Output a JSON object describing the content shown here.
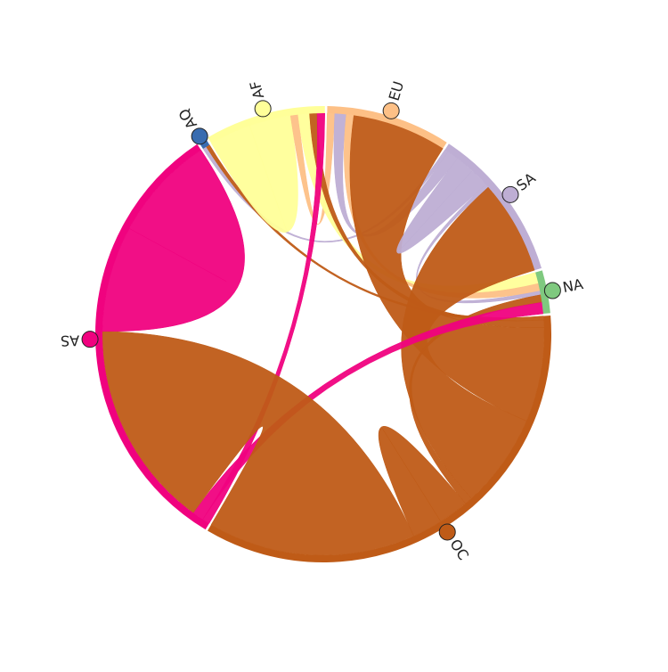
{
  "chart_data": {
    "type": "chord",
    "nodes": [
      {
        "name": "AQ",
        "color": "#386cb0"
      },
      {
        "name": "AF",
        "color": "#ffff99"
      },
      {
        "name": "EU",
        "color": "#fdc086"
      },
      {
        "name": "SA",
        "color": "#beaed4"
      },
      {
        "name": "NA",
        "color": "#7fc97f"
      },
      {
        "name": "OC",
        "color": "#bf5b17"
      },
      {
        "name": "AS",
        "color": "#f0027f"
      }
    ],
    "matrix": [
      [
        0,
        0,
        0,
        1,
        0,
        1,
        0
      ],
      [
        0,
        11,
        2,
        0,
        3,
        2,
        2
      ],
      [
        0,
        0,
        0,
        3,
        2,
        25,
        0
      ],
      [
        0,
        0,
        0,
        5,
        1,
        25,
        0
      ],
      [
        0,
        0,
        0,
        0,
        0,
        2,
        3
      ],
      [
        0,
        0,
        0,
        0,
        0,
        8,
        55
      ],
      [
        0,
        0,
        0,
        0,
        0,
        0,
        28
      ]
    ]
  }
}
